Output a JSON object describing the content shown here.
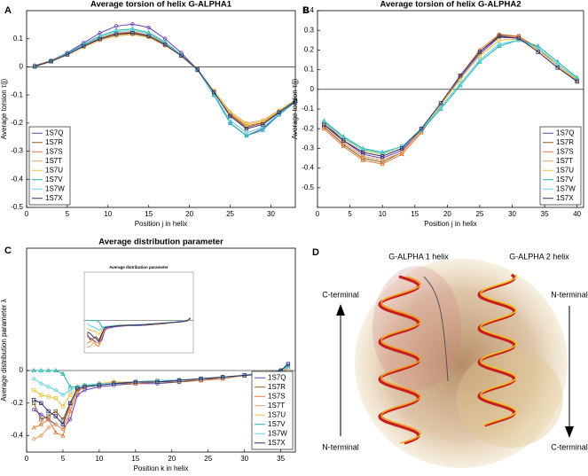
{
  "chart_data": [
    {
      "type": "line",
      "panel_label": "A",
      "title": "Average torsion of helix G-ALPHA1",
      "xlabel": "Position j in helix",
      "ylabel": "Average torsion  τ(j)",
      "x": [
        1,
        3,
        5,
        7,
        9,
        11,
        13,
        15,
        17,
        19,
        21,
        23,
        25,
        27,
        29,
        31,
        33
      ],
      "xlim": [
        0,
        33
      ],
      "xticks": [
        0,
        5,
        10,
        15,
        20,
        25,
        30
      ],
      "ylim": [
        -0.5,
        0.2
      ],
      "yticks": [
        -0.5,
        -0.4,
        -0.3,
        -0.2,
        -0.1,
        0,
        0.1
      ],
      "legend": "lower left",
      "series": [
        {
          "name": "1S7Q",
          "color": "#6a3db8",
          "values": [
            0,
            0.022,
            0.05,
            0.085,
            0.12,
            0.145,
            0.152,
            0.14,
            0.1,
            0.05,
            -0.01,
            -0.1,
            -0.2,
            -0.245,
            -0.22,
            -0.17,
            -0.125
          ]
        },
        {
          "name": "1S7R",
          "color": "#8b5a2b",
          "values": [
            0,
            0.02,
            0.045,
            0.075,
            0.1,
            0.118,
            0.122,
            0.11,
            0.08,
            0.04,
            -0.01,
            -0.09,
            -0.17,
            -0.215,
            -0.2,
            -0.16,
            -0.12
          ]
        },
        {
          "name": "1S7S",
          "color": "#e07b39",
          "values": [
            0.005,
            0.022,
            0.047,
            0.077,
            0.102,
            0.12,
            0.125,
            0.113,
            0.082,
            0.042,
            -0.008,
            -0.088,
            -0.168,
            -0.21,
            -0.198,
            -0.158,
            -0.12
          ]
        },
        {
          "name": "1S7T",
          "color": "#e6a060",
          "values": [
            0,
            0.018,
            0.042,
            0.07,
            0.095,
            0.11,
            0.115,
            0.105,
            0.076,
            0.038,
            -0.012,
            -0.085,
            -0.16,
            -0.2,
            -0.19,
            -0.155,
            -0.118
          ]
        },
        {
          "name": "1S7U",
          "color": "#e8c440",
          "values": [
            0,
            0.019,
            0.043,
            0.072,
            0.097,
            0.113,
            0.118,
            0.107,
            0.078,
            0.039,
            -0.011,
            -0.087,
            -0.165,
            -0.205,
            -0.195,
            -0.157,
            -0.119
          ]
        },
        {
          "name": "1S7V",
          "color": "#20b2aa",
          "values": [
            0,
            0.021,
            0.048,
            0.08,
            0.11,
            0.13,
            0.135,
            0.122,
            0.088,
            0.043,
            -0.012,
            -0.1,
            -0.2,
            -0.245,
            -0.225,
            -0.17,
            -0.122
          ]
        },
        {
          "name": "1S7W",
          "color": "#5fd3e6",
          "values": [
            0,
            0.02,
            0.046,
            0.078,
            0.106,
            0.125,
            0.13,
            0.118,
            0.085,
            0.042,
            -0.012,
            -0.097,
            -0.19,
            -0.235,
            -0.215,
            -0.165,
            -0.12
          ]
        },
        {
          "name": "1S7X",
          "color": "#2c2c6c",
          "values": [
            0.002,
            0.02,
            0.044,
            0.074,
            0.099,
            0.116,
            0.12,
            0.109,
            0.079,
            0.04,
            -0.01,
            -0.09,
            -0.175,
            -0.22,
            -0.205,
            -0.162,
            -0.121
          ]
        }
      ]
    },
    {
      "type": "line",
      "panel_label": "B",
      "title": "Average torsion of helix G-ALPHA2",
      "xlabel": "Position j in helix",
      "ylabel": "Average torsion  τ(j)",
      "x": [
        1,
        4,
        7,
        10,
        13,
        16,
        19,
        22,
        25,
        28,
        31,
        34,
        37,
        40
      ],
      "xlim": [
        0,
        41
      ],
      "xticks": [
        0,
        5,
        10,
        15,
        20,
        25,
        30,
        35,
        40
      ],
      "ylim": [
        -0.6,
        0.4
      ],
      "yticks": [
        -0.5,
        -0.4,
        -0.3,
        -0.2,
        -0.1,
        0,
        0.1,
        0.2,
        0.3,
        0.4
      ],
      "legend": "lower right",
      "series": [
        {
          "name": "1S7Q",
          "color": "#6a3db8",
          "values": [
            -0.17,
            -0.26,
            -0.33,
            -0.35,
            -0.31,
            -0.21,
            -0.08,
            0.06,
            0.18,
            0.265,
            0.26,
            0.2,
            0.12,
            0.05
          ]
        },
        {
          "name": "1S7R",
          "color": "#8b5a2b",
          "values": [
            -0.19,
            -0.28,
            -0.35,
            -0.37,
            -0.32,
            -0.21,
            -0.08,
            0.07,
            0.19,
            0.275,
            0.27,
            0.2,
            0.12,
            0.04
          ]
        },
        {
          "name": "1S7S",
          "color": "#e07b39",
          "values": [
            -0.2,
            -0.29,
            -0.36,
            -0.38,
            -0.33,
            -0.22,
            -0.08,
            0.07,
            0.2,
            0.28,
            0.27,
            0.21,
            0.12,
            0.045
          ]
        },
        {
          "name": "1S7T",
          "color": "#e6a060",
          "values": [
            -0.18,
            -0.27,
            -0.34,
            -0.36,
            -0.32,
            -0.21,
            -0.08,
            0.07,
            0.19,
            0.27,
            0.265,
            0.2,
            0.12,
            0.04
          ]
        },
        {
          "name": "1S7U",
          "color": "#e8c440",
          "values": [
            -0.17,
            -0.25,
            -0.31,
            -0.33,
            -0.29,
            -0.2,
            -0.08,
            0.05,
            0.17,
            0.25,
            0.255,
            0.2,
            0.12,
            0.05
          ]
        },
        {
          "name": "1S7V",
          "color": "#20b2aa",
          "values": [
            -0.16,
            -0.24,
            -0.3,
            -0.32,
            -0.29,
            -0.21,
            -0.1,
            0.02,
            0.14,
            0.22,
            0.25,
            0.22,
            0.14,
            0.06
          ]
        },
        {
          "name": "1S7W",
          "color": "#5fd3e6",
          "values": [
            -0.165,
            -0.245,
            -0.305,
            -0.325,
            -0.29,
            -0.205,
            -0.09,
            0.03,
            0.15,
            0.23,
            0.25,
            0.21,
            0.13,
            0.055
          ]
        },
        {
          "name": "1S7X",
          "color": "#2c2c6c",
          "values": [
            -0.18,
            -0.26,
            -0.32,
            -0.34,
            -0.3,
            -0.2,
            -0.07,
            0.07,
            0.19,
            0.27,
            0.26,
            0.19,
            0.11,
            0.04
          ]
        }
      ]
    },
    {
      "type": "line",
      "panel_label": "C",
      "title": "Average distribution parameter",
      "xlabel": "Position k in helix",
      "ylabel": "Average distribution parameter  λ",
      "x": [
        1,
        2,
        3,
        4,
        5,
        6,
        7,
        8,
        10,
        12,
        15,
        18,
        21,
        24,
        27,
        30,
        33,
        35,
        36
      ],
      "xlim": [
        0,
        37
      ],
      "xticks": [
        0,
        5,
        10,
        15,
        20,
        25,
        30,
        35
      ],
      "ylim": [
        -0.5,
        0.75
      ],
      "yticks": [
        -0.4,
        -0.2,
        0
      ],
      "legend": "lower right",
      "series": [
        {
          "name": "1S7Q",
          "color": "#6a3db8",
          "values": [
            -0.24,
            -0.27,
            -0.3,
            -0.33,
            -0.36,
            -0.3,
            -0.15,
            -0.12,
            -0.1,
            -0.09,
            -0.08,
            -0.08,
            -0.07,
            -0.06,
            -0.05,
            -0.03,
            -0.02,
            0,
            0.03
          ]
        },
        {
          "name": "1S7R",
          "color": "#8b5a2b",
          "values": [
            -0.2,
            -0.3,
            -0.28,
            -0.25,
            -0.3,
            -0.2,
            -0.12,
            -0.1,
            -0.09,
            -0.08,
            -0.08,
            -0.07,
            -0.07,
            -0.06,
            -0.04,
            -0.03,
            -0.01,
            0,
            0.02
          ]
        },
        {
          "name": "1S7S",
          "color": "#e07b39",
          "values": [
            -0.35,
            -0.33,
            -0.3,
            -0.38,
            -0.4,
            -0.25,
            -0.13,
            -0.1,
            -0.08,
            -0.07,
            -0.08,
            -0.07,
            -0.06,
            -0.06,
            -0.05,
            -0.03,
            -0.02,
            -0.01,
            0.02
          ]
        },
        {
          "name": "1S7T",
          "color": "#e6a060",
          "values": [
            -0.42,
            -0.4,
            -0.35,
            -0.33,
            -0.36,
            -0.22,
            -0.12,
            -0.1,
            -0.09,
            -0.08,
            -0.07,
            -0.07,
            -0.06,
            -0.05,
            -0.04,
            -0.03,
            -0.02,
            0,
            0.01
          ]
        },
        {
          "name": "1S7U",
          "color": "#e8c440",
          "values": [
            -0.12,
            -0.15,
            -0.16,
            -0.17,
            -0.22,
            -0.15,
            -0.1,
            -0.09,
            -0.08,
            -0.07,
            -0.07,
            -0.06,
            -0.06,
            -0.05,
            -0.04,
            -0.03,
            -0.01,
            0,
            0.02
          ]
        },
        {
          "name": "1S7V",
          "color": "#20b2aa",
          "values": [
            0,
            0,
            0,
            0,
            -0.02,
            -0.1,
            -0.1,
            -0.09,
            -0.09,
            -0.08,
            -0.07,
            -0.07,
            -0.06,
            -0.05,
            -0.04,
            -0.03,
            -0.01,
            0,
            0.03
          ]
        },
        {
          "name": "1S7W",
          "color": "#5fd3e6",
          "values": [
            -0.05,
            -0.08,
            -0.1,
            -0.12,
            -0.15,
            -0.12,
            -0.1,
            -0.09,
            -0.08,
            -0.08,
            -0.07,
            -0.06,
            -0.06,
            -0.05,
            -0.04,
            -0.03,
            -0.02,
            0,
            0.02
          ]
        },
        {
          "name": "1S7X",
          "color": "#2c2c6c",
          "values": [
            -0.18,
            -0.2,
            -0.25,
            -0.28,
            -0.33,
            -0.2,
            -0.11,
            -0.1,
            -0.09,
            -0.08,
            -0.07,
            -0.07,
            -0.06,
            -0.05,
            -0.04,
            -0.03,
            -0.02,
            0,
            0.04
          ]
        }
      ]
    }
  ],
  "structure_panel": {
    "panel_label": "D",
    "helix_1": "G-ALPHA 1 helix",
    "helix_2": "G-ALPHA 2 helix",
    "left_top": "C-terminal",
    "left_bottom": "N-terminal",
    "right_top": "N-terminal",
    "right_bottom": "C-terminal"
  }
}
